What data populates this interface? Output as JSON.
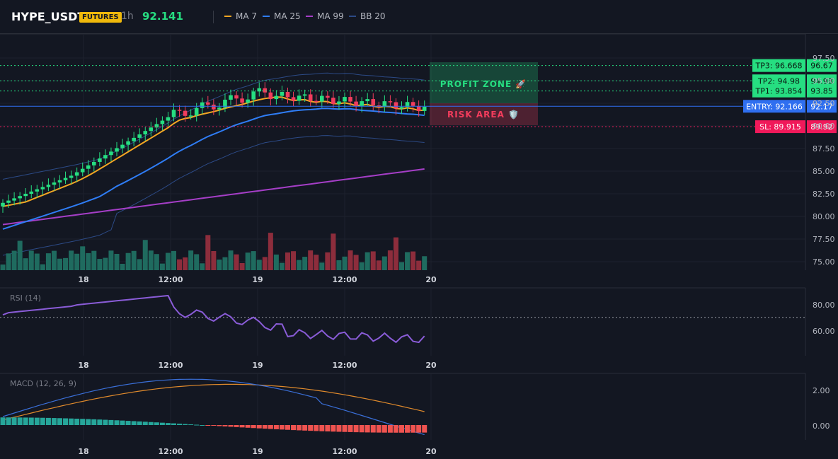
{
  "header": {
    "symbol": "HYPE_USDT",
    "market_badge": "FUTURES",
    "timeframe": "1h",
    "last_price": "92.141",
    "legend": [
      {
        "label": "MA 7",
        "color": "#f5a623"
      },
      {
        "label": "MA 25",
        "color": "#2f7df6"
      },
      {
        "label": "MA 99",
        "color": "#a53ec7"
      },
      {
        "label": "BB 20",
        "color": "#2c4a86"
      }
    ]
  },
  "colors": {
    "up": "#26de81",
    "down": "#f23c5c",
    "background": "#131722",
    "grid": "#1e222d"
  },
  "price_axis": {
    "ticks": [
      "97.50",
      "95.00",
      "92.50",
      "90.00",
      "87.50",
      "85.00",
      "82.50",
      "80.00",
      "77.50",
      "75.00"
    ]
  },
  "time_axis": {
    "labels": [
      "18",
      "12:00",
      "19",
      "12:00",
      "20"
    ]
  },
  "zones": {
    "profit_label": "PROFIT ZONE 🚀",
    "risk_label": "RISK AREA 🛡️"
  },
  "trade_levels": [
    {
      "name": "tp3",
      "label": "TP3: 96.668",
      "axis_value": "96.67",
      "price": 96.668,
      "color": "#26de81"
    },
    {
      "name": "tp2",
      "label": "TP2: 94.98",
      "axis_value": "94.98",
      "price": 94.98,
      "color": "#26de81"
    },
    {
      "name": "tp1",
      "label": "TP1: 93.854",
      "axis_value": "93.85",
      "price": 93.854,
      "color": "#26de81"
    },
    {
      "name": "entry",
      "label": "ENTRY: 92.166",
      "axis_value": "92.17",
      "price": 92.166,
      "color": "#2f6ff0"
    },
    {
      "name": "sl",
      "label": "SL: 89.915",
      "axis_value": "89.92",
      "price": 89.915,
      "color": "#f0195a"
    }
  ],
  "rsi": {
    "title": "RSI (14)",
    "ticks": [
      "80.00",
      "60.00"
    ],
    "overbought": 70
  },
  "macd": {
    "title": "MACD (12, 26, 9)",
    "ticks": [
      "2.00",
      "0.00"
    ]
  }
}
